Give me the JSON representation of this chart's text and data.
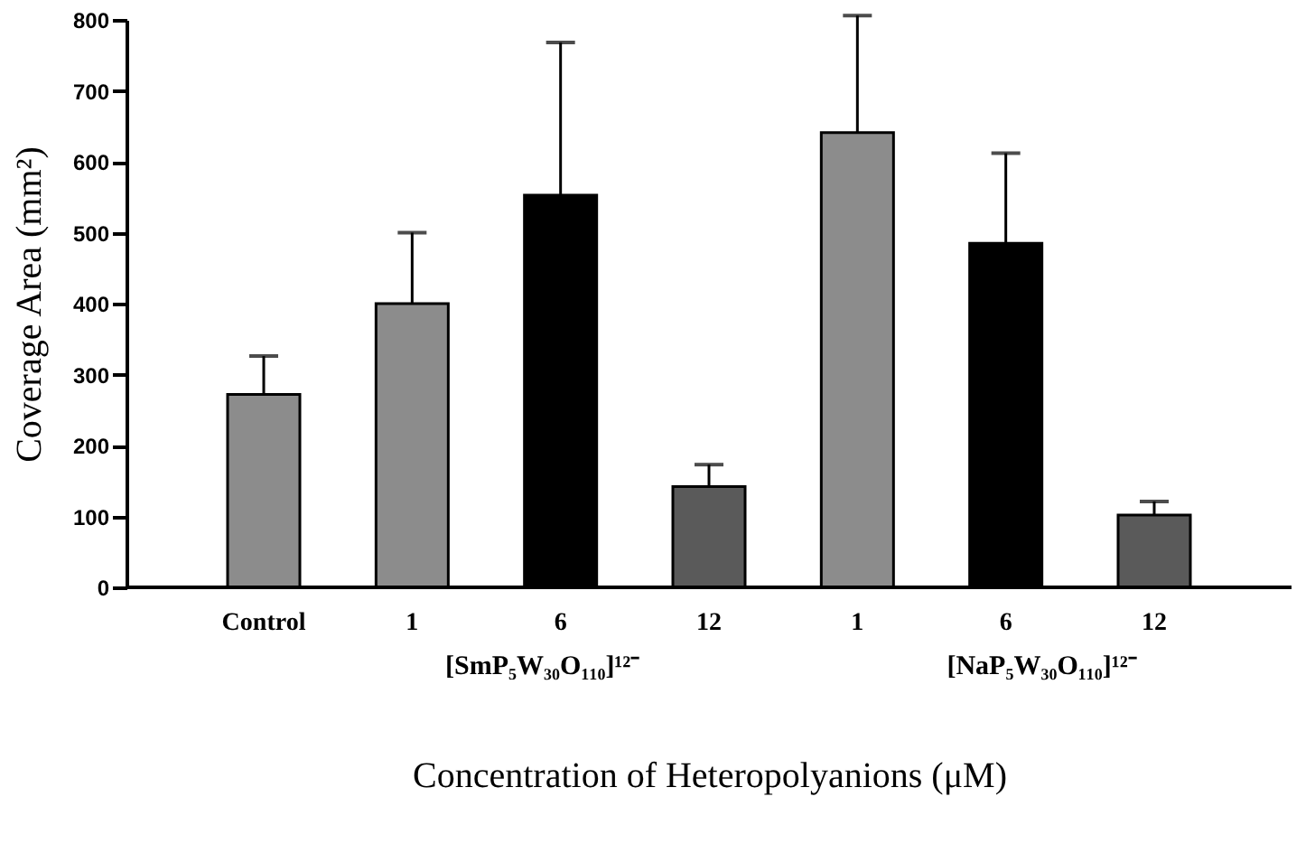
{
  "chart_data": {
    "type": "bar",
    "xlabel": "Concentration of Heteropolyanions (μM)",
    "ylabel": "Coverage Area (mm²)",
    "categories": [
      "Control",
      "1",
      "6",
      "12",
      "1",
      "6",
      "12"
    ],
    "values": [
      272,
      400,
      553,
      142,
      641,
      485,
      102
    ],
    "errors": [
      [
        272,
        326
      ],
      [
        400,
        500
      ],
      [
        553,
        768
      ],
      [
        142,
        173
      ],
      [
        641,
        806
      ],
      [
        485,
        612
      ],
      [
        102,
        121
      ]
    ],
    "colors": [
      "#8c8c8c",
      "#8c8c8c",
      "#000000",
      "#5a5a5a",
      "#8c8c8c",
      "#000000",
      "#5a5a5a"
    ],
    "ylim": [
      0,
      800
    ],
    "yticks": [
      0,
      100,
      200,
      300,
      400,
      500,
      600,
      700,
      800
    ],
    "annotations": [
      "[SmP₅W₃₀O₁₁₀]¹²⁻",
      "[NaP₅W₃₀O₁₁₀]¹²⁻"
    ],
    "grid": false
  }
}
